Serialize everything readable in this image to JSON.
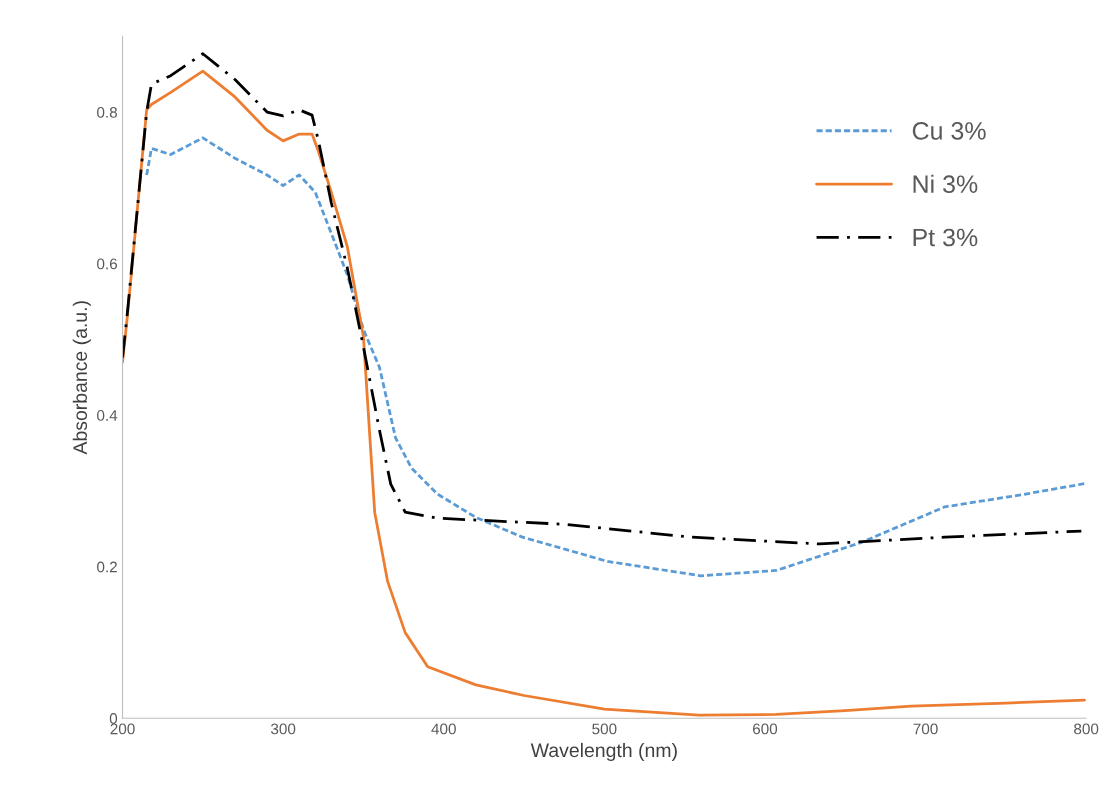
{
  "chart_data": {
    "type": "line",
    "xlabel": "Wavelength (nm)",
    "ylabel": "Absorbance (a.u.)",
    "xlim": [
      200,
      800
    ],
    "xticks": [
      200,
      300,
      400,
      500,
      600,
      700,
      800
    ],
    "ylim": [
      0,
      0.9
    ],
    "yticks": [
      0,
      0.2,
      0.4,
      0.6,
      0.8
    ],
    "grid": false,
    "legend": "right",
    "marker": "none",
    "series": [
      {
        "name": "Cu 3%",
        "color": "#5b9bd5",
        "line_style": "dashed",
        "x": [
          215,
          218,
          230,
          250,
          270,
          290,
          300,
          310,
          320,
          330,
          340,
          350,
          360,
          370,
          380,
          396,
          420,
          449,
          502,
          560,
          607,
          660,
          712,
          760,
          800
        ],
        "values": [
          0.717,
          0.752,
          0.744,
          0.766,
          0.739,
          0.717,
          0.703,
          0.717,
          0.694,
          0.64,
          0.585,
          0.513,
          0.463,
          0.37,
          0.33,
          0.296,
          0.265,
          0.239,
          0.207,
          0.188,
          0.195,
          0.232,
          0.279,
          0.295,
          0.31
        ]
      },
      {
        "name": "Ni 3%",
        "color": "#ed7d31",
        "line_style": "solid",
        "x": [
          200,
          203,
          215,
          218,
          230,
          250,
          270,
          290,
          300,
          310,
          318,
          322,
          330,
          340,
          350,
          357,
          365,
          376,
          390,
          420,
          450,
          500,
          559,
          607,
          650,
          691,
          750,
          799
        ],
        "values": [
          0.47,
          0.53,
          0.803,
          0.81,
          0.826,
          0.854,
          0.82,
          0.776,
          0.762,
          0.771,
          0.771,
          0.748,
          0.694,
          0.622,
          0.503,
          0.272,
          0.181,
          0.113,
          0.068,
          0.044,
          0.03,
          0.012,
          0.004,
          0.005,
          0.01,
          0.016,
          0.02,
          0.024
        ]
      },
      {
        "name": "Pt 3%",
        "color": "#000000",
        "line_style": "dashdot",
        "x": [
          200,
          203,
          215,
          218,
          230,
          250,
          270,
          290,
          300,
          310,
          318,
          322,
          330,
          340,
          350,
          360,
          367,
          376,
          396,
          475,
          554,
          634,
          712,
          797
        ],
        "values": [
          0.476,
          0.535,
          0.8,
          0.837,
          0.848,
          0.877,
          0.843,
          0.8,
          0.795,
          0.803,
          0.796,
          0.762,
          0.68,
          0.594,
          0.49,
          0.38,
          0.309,
          0.272,
          0.264,
          0.256,
          0.239,
          0.23,
          0.239,
          0.247
        ]
      }
    ]
  }
}
